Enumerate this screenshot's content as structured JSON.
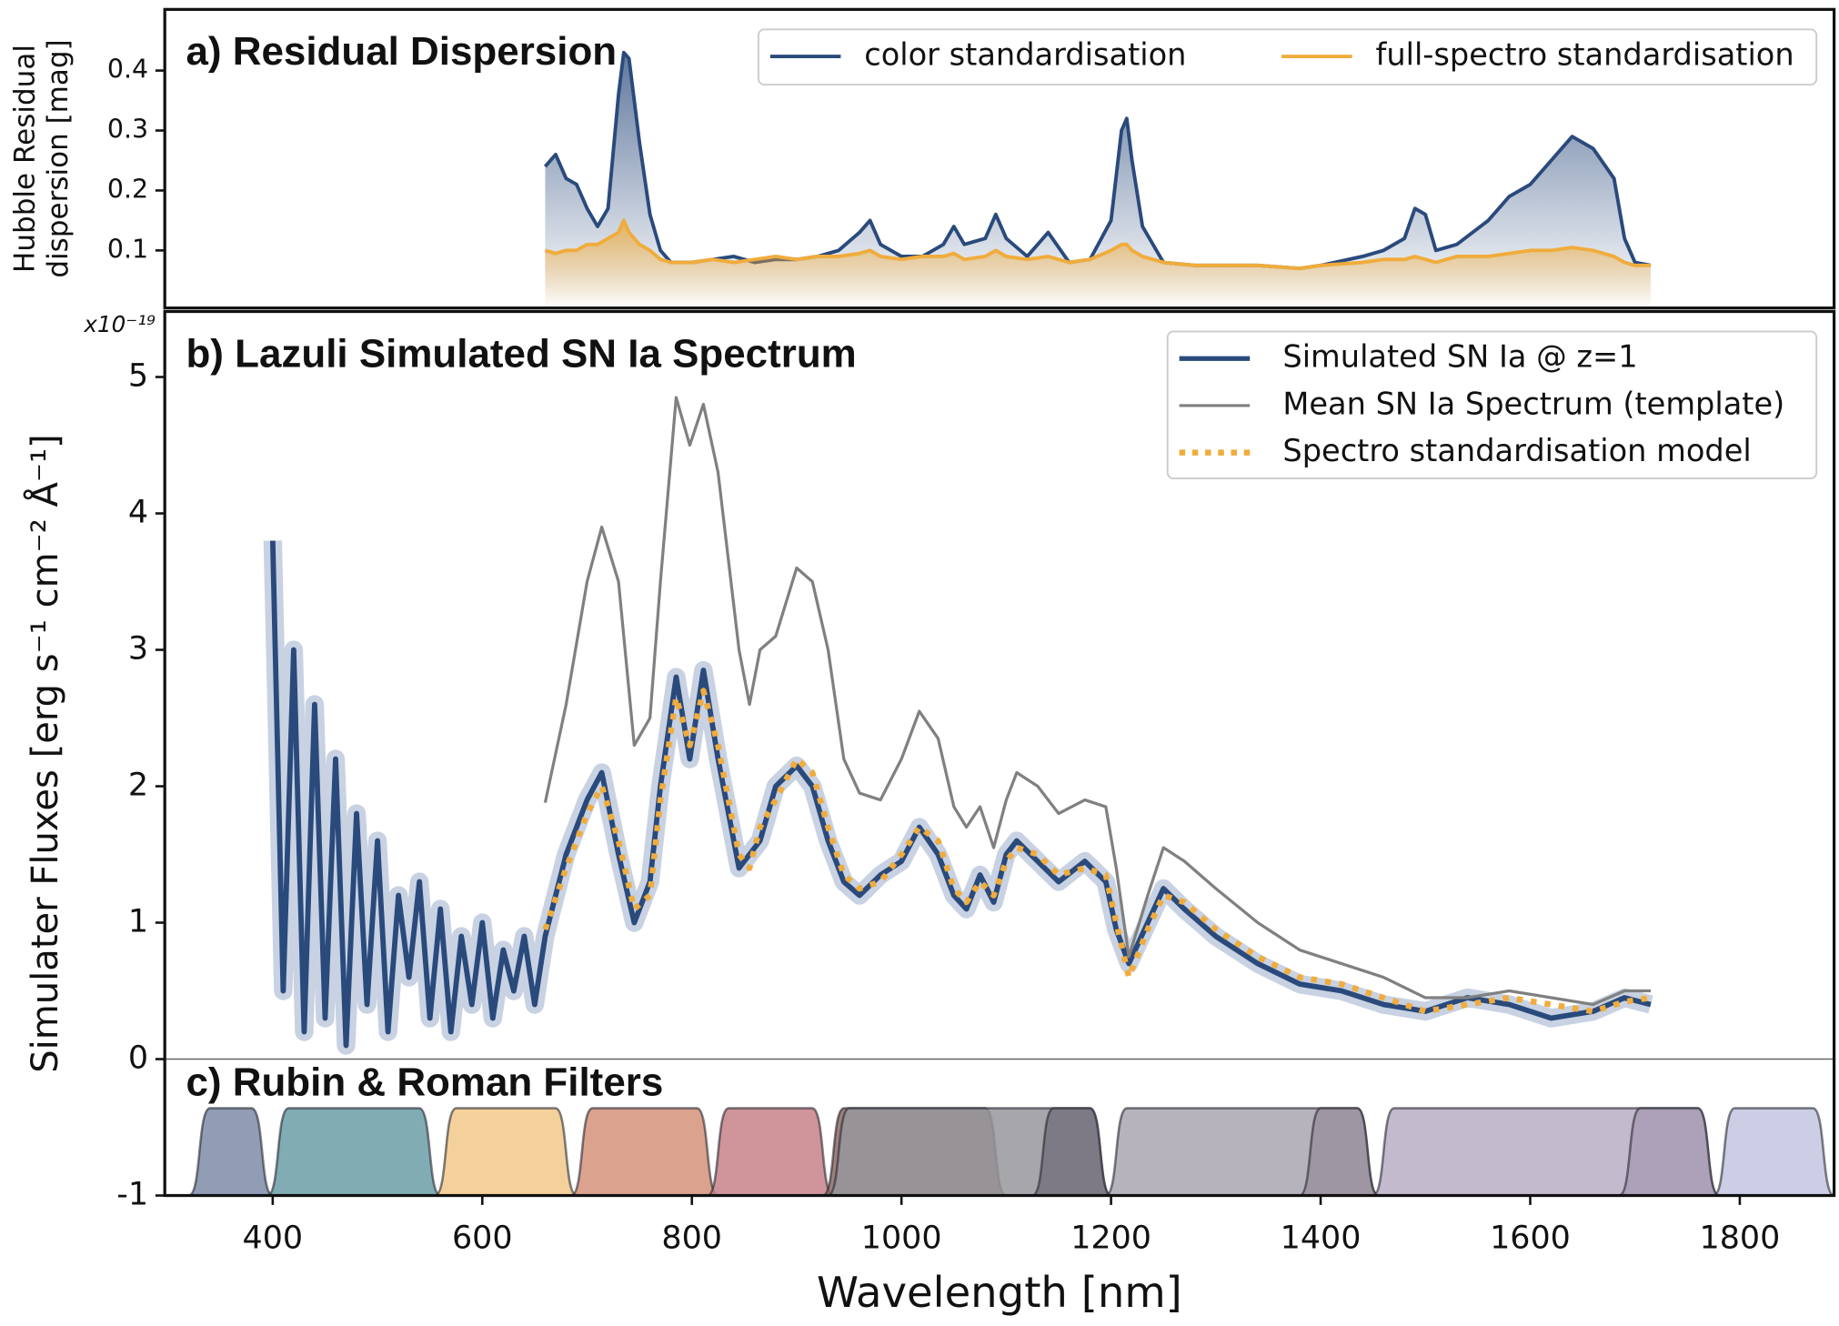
{
  "chart_data": [
    {
      "type": "line",
      "title": "a) Residual Dispersion",
      "ylabel": [
        "Hubble Residual",
        "dispersion [mag]"
      ],
      "xlim": [
        297,
        1890
      ],
      "ylim": [
        0.004,
        0.502
      ],
      "yticks": [
        0.1,
        0.2,
        0.3,
        0.4
      ],
      "legend": "upper right",
      "legend_columns": 2,
      "x": [
        660,
        670,
        680,
        690,
        700,
        710,
        720,
        730,
        735,
        740,
        750,
        760,
        770,
        780,
        800,
        820,
        840,
        860,
        880,
        900,
        920,
        940,
        960,
        970,
        980,
        1000,
        1020,
        1040,
        1050,
        1060,
        1080,
        1090,
        1100,
        1120,
        1140,
        1160,
        1180,
        1200,
        1210,
        1215,
        1220,
        1230,
        1250,
        1280,
        1300,
        1340,
        1380,
        1400,
        1440,
        1460,
        1480,
        1490,
        1500,
        1510,
        1530,
        1560,
        1580,
        1600,
        1620,
        1640,
        1660,
        1680,
        1690,
        1700,
        1715
      ],
      "series": [
        {
          "name": "color standardisation",
          "color": "#2a4a7c",
          "linewidth": 3,
          "fill": "gradient",
          "values": [
            0.24,
            0.26,
            0.22,
            0.21,
            0.17,
            0.14,
            0.17,
            0.36,
            0.43,
            0.42,
            0.28,
            0.16,
            0.1,
            0.08,
            0.08,
            0.085,
            0.09,
            0.08,
            0.085,
            0.085,
            0.09,
            0.1,
            0.13,
            0.15,
            0.11,
            0.09,
            0.09,
            0.11,
            0.14,
            0.11,
            0.12,
            0.16,
            0.12,
            0.09,
            0.13,
            0.08,
            0.085,
            0.15,
            0.3,
            0.32,
            0.25,
            0.14,
            0.08,
            0.075,
            0.075,
            0.075,
            0.07,
            0.075,
            0.09,
            0.1,
            0.12,
            0.17,
            0.16,
            0.1,
            0.11,
            0.15,
            0.19,
            0.21,
            0.25,
            0.29,
            0.27,
            0.22,
            0.12,
            0.08,
            0.075
          ]
        },
        {
          "name": "full-spectro standardisation",
          "color": "#f0ac3c",
          "linewidth": 3,
          "fill": "gradient",
          "values": [
            0.1,
            0.095,
            0.1,
            0.1,
            0.11,
            0.11,
            0.12,
            0.13,
            0.15,
            0.13,
            0.11,
            0.1,
            0.085,
            0.08,
            0.08,
            0.085,
            0.08,
            0.085,
            0.09,
            0.085,
            0.09,
            0.09,
            0.095,
            0.1,
            0.09,
            0.085,
            0.09,
            0.09,
            0.095,
            0.085,
            0.09,
            0.1,
            0.09,
            0.085,
            0.09,
            0.08,
            0.085,
            0.1,
            0.11,
            0.11,
            0.1,
            0.09,
            0.08,
            0.075,
            0.075,
            0.075,
            0.07,
            0.075,
            0.08,
            0.085,
            0.085,
            0.09,
            0.085,
            0.08,
            0.09,
            0.09,
            0.095,
            0.1,
            0.1,
            0.105,
            0.1,
            0.09,
            0.08,
            0.075,
            0.075
          ]
        }
      ]
    },
    {
      "type": "line",
      "title": "b) Lazuli Simulated SN Ia Spectrum",
      "annotation": "c) Rubin & Roman Filters",
      "ylabel": "Simulater Fluxes [erg s⁻¹ cm⁻² Å⁻¹]",
      "offset_text": "x10⁻¹⁹",
      "xlabel": "Wavelength [nm]",
      "xlim": [
        297,
        1890
      ],
      "xticks": [
        400,
        600,
        800,
        1000,
        1200,
        1400,
        1600,
        1800
      ],
      "ylim": [
        -1,
        5.48
      ],
      "yticks": [
        -1,
        0,
        1,
        2,
        3,
        4,
        5
      ],
      "hline": 0,
      "legend": "upper right",
      "legend_columns": 1,
      "filter_level": -0.36,
      "filters": [
        {
          "color": "#7d8ca8",
          "range": [
            320,
            400
          ]
        },
        {
          "color": "#6b9ea6",
          "range": [
            395,
            560
          ]
        },
        {
          "color": "#f2c98a",
          "range": [
            555,
            690
          ]
        },
        {
          "color": "#d59279",
          "range": [
            685,
            825
          ]
        },
        {
          "color": "#c78388",
          "range": [
            815,
            935
          ]
        },
        {
          "color": "#8e6b64",
          "range": [
            925,
            1100
          ]
        },
        {
          "color": "#96969c",
          "range": [
            930,
            1200
          ]
        },
        {
          "color": "#77727e",
          "range": [
            1125,
            1200
          ]
        },
        {
          "color": "#aaa6b0",
          "range": [
            1195,
            1455
          ]
        },
        {
          "color": "#9a909e",
          "range": [
            1380,
            1455
          ]
        },
        {
          "color": "#b8aec6",
          "range": [
            1450,
            1780
          ]
        },
        {
          "color": "#a89cb4",
          "range": [
            1685,
            1780
          ]
        },
        {
          "color": "#c2c6e0",
          "range": [
            1775,
            1890
          ]
        }
      ],
      "series": [
        {
          "name": "Simulated SN Ia @ z=1",
          "color": "#2a4a7c",
          "linewidth": 4.5,
          "band_color": "#c8d2e2",
          "x": [
            400,
            410,
            420,
            430,
            440,
            450,
            460,
            470,
            480,
            490,
            500,
            510,
            520,
            530,
            540,
            550,
            560,
            570,
            580,
            590,
            600,
            610,
            620,
            630,
            640,
            650,
            660,
            680,
            700,
            714,
            730,
            745,
            760,
            770,
            785,
            798,
            811,
            825,
            845,
            855,
            865,
            880,
            900,
            915,
            930,
            945,
            960,
            980,
            1000,
            1017,
            1035,
            1050,
            1062,
            1075,
            1088,
            1100,
            1110,
            1130,
            1150,
            1175,
            1195,
            1205,
            1217,
            1235,
            1250,
            1270,
            1300,
            1340,
            1380,
            1420,
            1460,
            1500,
            1540,
            1580,
            1620,
            1660,
            1690,
            1715
          ],
          "values": [
            3.8,
            0.5,
            3.0,
            0.2,
            2.6,
            0.3,
            2.2,
            0.1,
            1.8,
            0.4,
            1.6,
            0.2,
            1.2,
            0.6,
            1.3,
            0.3,
            1.1,
            0.2,
            0.9,
            0.4,
            1.0,
            0.3,
            0.8,
            0.5,
            0.9,
            0.4,
            0.9,
            1.5,
            1.9,
            2.1,
            1.5,
            1.0,
            1.3,
            2.0,
            2.8,
            2.2,
            2.85,
            2.2,
            1.4,
            1.5,
            1.6,
            2.0,
            2.15,
            2.0,
            1.6,
            1.3,
            1.2,
            1.35,
            1.45,
            1.7,
            1.5,
            1.2,
            1.1,
            1.35,
            1.15,
            1.5,
            1.6,
            1.45,
            1.3,
            1.45,
            1.3,
            0.95,
            0.7,
            1.0,
            1.25,
            1.1,
            0.9,
            0.7,
            0.55,
            0.5,
            0.4,
            0.35,
            0.45,
            0.4,
            0.3,
            0.35,
            0.45,
            0.4
          ]
        },
        {
          "name": "Mean SN Ia Spectrum (template)",
          "color": "#808080",
          "linewidth": 2.5,
          "x": [
            660,
            680,
            700,
            714,
            730,
            745,
            760,
            770,
            785,
            798,
            811,
            825,
            845,
            855,
            865,
            880,
            900,
            915,
            930,
            945,
            960,
            980,
            1000,
            1017,
            1035,
            1050,
            1062,
            1075,
            1088,
            1100,
            1110,
            1130,
            1150,
            1175,
            1195,
            1205,
            1217,
            1235,
            1250,
            1270,
            1300,
            1340,
            1380,
            1420,
            1460,
            1500,
            1540,
            1580,
            1620,
            1660,
            1690,
            1715
          ],
          "values": [
            1.88,
            2.6,
            3.5,
            3.9,
            3.5,
            2.3,
            2.5,
            3.5,
            4.85,
            4.5,
            4.8,
            4.3,
            3.0,
            2.6,
            3.0,
            3.1,
            3.6,
            3.5,
            3.0,
            2.2,
            1.95,
            1.9,
            2.2,
            2.55,
            2.35,
            1.85,
            1.7,
            1.85,
            1.55,
            1.9,
            2.1,
            2.0,
            1.8,
            1.9,
            1.85,
            1.4,
            0.75,
            1.2,
            1.55,
            1.45,
            1.25,
            1.0,
            0.8,
            0.7,
            0.6,
            0.45,
            0.45,
            0.5,
            0.45,
            0.4,
            0.5,
            0.5
          ]
        },
        {
          "name": "Spectro standardisation model",
          "color": "#f0ac3c",
          "linewidth": 5,
          "style": "dotted",
          "x": [
            660,
            680,
            700,
            714,
            730,
            745,
            760,
            770,
            785,
            798,
            811,
            825,
            845,
            855,
            865,
            880,
            900,
            915,
            930,
            945,
            960,
            980,
            1000,
            1017,
            1035,
            1050,
            1062,
            1075,
            1088,
            1100,
            1110,
            1130,
            1150,
            1175,
            1195,
            1205,
            1217,
            1235,
            1250,
            1270,
            1300,
            1340,
            1380,
            1420,
            1460,
            1500,
            1540,
            1580,
            1620,
            1660,
            1690,
            1715
          ],
          "values": [
            0.95,
            1.4,
            1.8,
            2.0,
            1.6,
            1.1,
            1.2,
            1.9,
            2.65,
            2.3,
            2.7,
            2.3,
            1.5,
            1.4,
            1.7,
            1.9,
            2.2,
            2.1,
            1.7,
            1.35,
            1.25,
            1.3,
            1.5,
            1.7,
            1.6,
            1.25,
            1.15,
            1.3,
            1.2,
            1.45,
            1.55,
            1.5,
            1.35,
            1.4,
            1.35,
            1.0,
            0.6,
            0.95,
            1.2,
            1.15,
            0.95,
            0.75,
            0.6,
            0.55,
            0.45,
            0.35,
            0.4,
            0.45,
            0.4,
            0.35,
            0.42,
            0.45
          ]
        }
      ]
    }
  ]
}
